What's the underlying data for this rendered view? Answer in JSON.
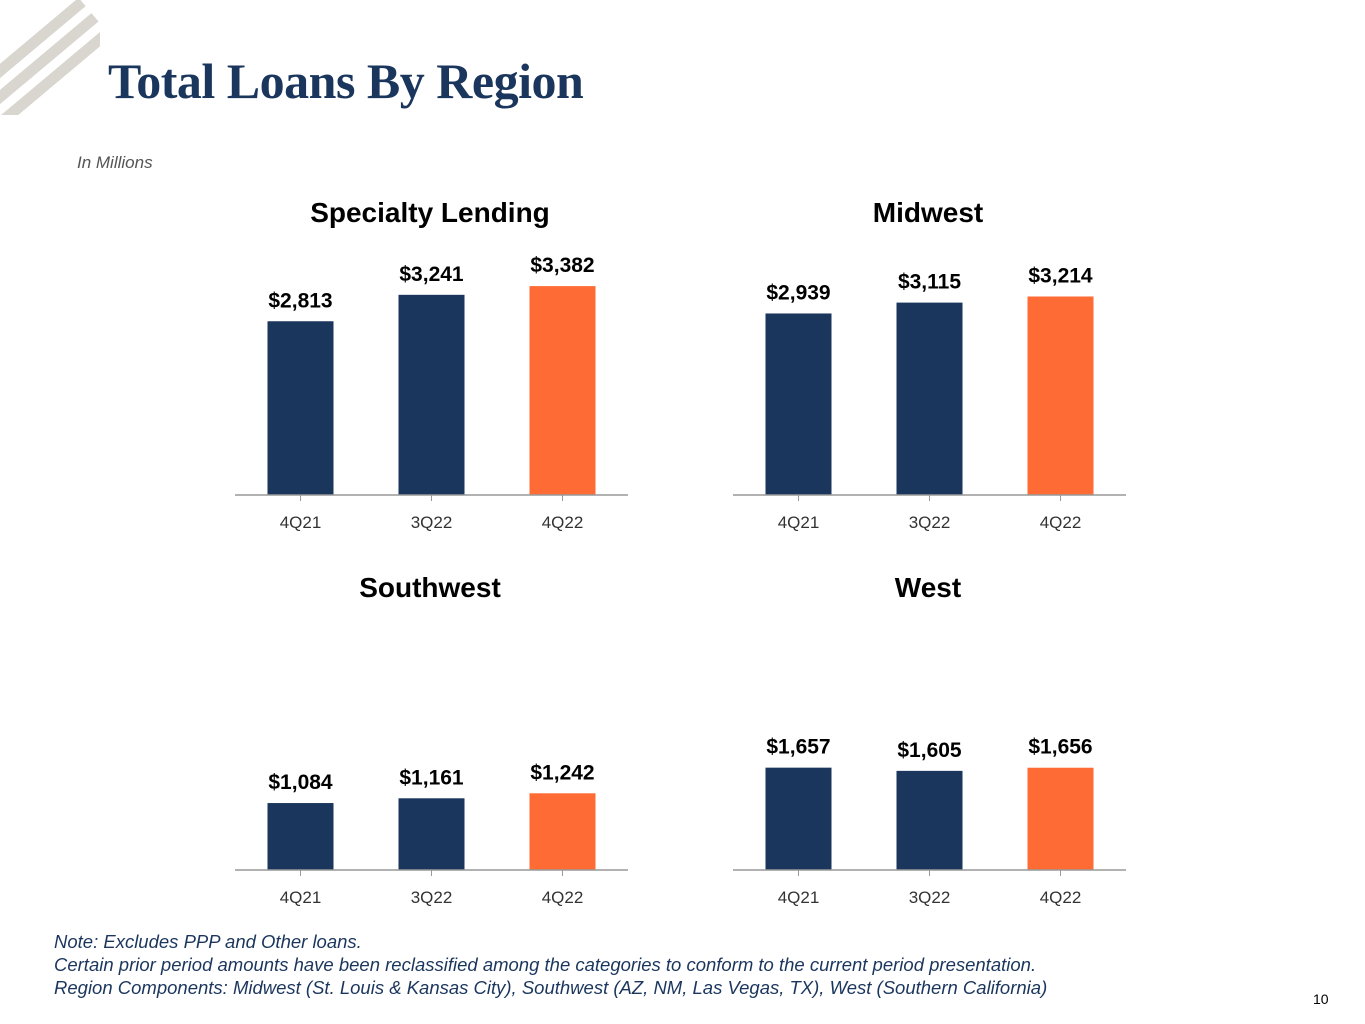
{
  "header": {
    "title": "Total Loans By Region",
    "units": "In Millions"
  },
  "colors": {
    "navy": "#1b365d",
    "orange": "#ff6b35",
    "axis": "#999999",
    "logo_stripe": "#d9d6cf"
  },
  "chart_data": [
    {
      "type": "bar",
      "title": "Specialty Lending",
      "categories": [
        "4Q21",
        "3Q22",
        "4Q22"
      ],
      "values": [
        2813,
        3241,
        3382
      ],
      "labels": [
        "$2,813",
        "$3,241",
        "$3,382"
      ],
      "bar_colors": [
        "#1b365d",
        "#1b365d",
        "#ff6b35"
      ],
      "ylim": [
        0,
        3400
      ],
      "grid": false
    },
    {
      "type": "bar",
      "title": "Midwest",
      "categories": [
        "4Q21",
        "3Q22",
        "4Q22"
      ],
      "values": [
        2939,
        3115,
        3214
      ],
      "labels": [
        "$2,939",
        "$3,115",
        "$3,214"
      ],
      "bar_colors": [
        "#1b365d",
        "#1b365d",
        "#ff6b35"
      ],
      "ylim": [
        0,
        3400
      ],
      "grid": false
    },
    {
      "type": "bar",
      "title": "Southwest",
      "categories": [
        "4Q21",
        "3Q22",
        "4Q22"
      ],
      "values": [
        1084,
        1161,
        1242
      ],
      "labels": [
        "$1,084",
        "$1,161",
        "$1,242"
      ],
      "bar_colors": [
        "#1b365d",
        "#1b365d",
        "#ff6b35"
      ],
      "ylim": [
        0,
        3400
      ],
      "grid": false
    },
    {
      "type": "bar",
      "title": "West",
      "categories": [
        "4Q21",
        "3Q22",
        "4Q22"
      ],
      "values": [
        1657,
        1605,
        1656
      ],
      "labels": [
        "$1,657",
        "$1,605",
        "$1,656"
      ],
      "bar_colors": [
        "#1b365d",
        "#1b365d",
        "#ff6b35"
      ],
      "ylim": [
        0,
        3400
      ],
      "grid": false
    }
  ],
  "notes": [
    "Note: Excludes PPP and Other loans.",
    "Certain prior period amounts have been reclassified among the categories to conform to the current period presentation.",
    "Region Components: Midwest (St. Louis & Kansas City), Southwest (AZ, NM, Las Vegas, TX), West (Southern California)"
  ],
  "page_number": "10"
}
